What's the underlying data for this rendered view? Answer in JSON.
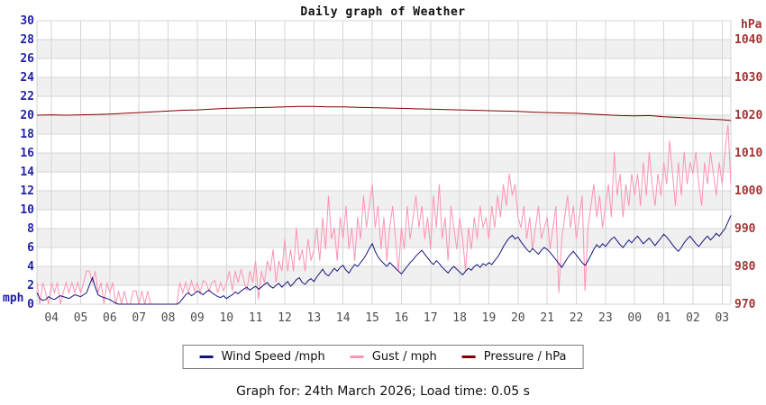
{
  "footer": {
    "text": "Graph for: 24th March 2026; Load time: 0.05 s"
  },
  "chart_data": {
    "type": "line",
    "title": "Daily graph of Weather",
    "left_axis": {
      "unit": "mph",
      "range": [
        0,
        30
      ],
      "ticks": [
        0,
        2,
        4,
        6,
        8,
        10,
        12,
        14,
        16,
        18,
        20,
        22,
        24,
        26,
        28,
        30
      ],
      "color": "#2222aa"
    },
    "right_axis": {
      "unit": "hPa",
      "range": [
        970,
        1045
      ],
      "ticks": [
        970,
        980,
        990,
        1000,
        1010,
        1020,
        1030,
        1040
      ],
      "color": "#a33333"
    },
    "x_axis": {
      "start_hour": 3.5,
      "end_hour": 27.3,
      "label_color": "#4d4d4d",
      "tick_labels": [
        "04",
        "05",
        "06",
        "07",
        "08",
        "09",
        "10",
        "11",
        "12",
        "13",
        "14",
        "15",
        "16",
        "17",
        "18",
        "19",
        "20",
        "21",
        "22",
        "23",
        "00",
        "01",
        "02",
        "03"
      ]
    },
    "grid": {
      "band_color": "#f0f0f0",
      "line_color": "#d6d6d6"
    },
    "series": [
      {
        "id": "wind-speed",
        "name": "Wind Speed /mph",
        "color": "#15157e",
        "axis": "left",
        "t0": 3.5,
        "dt": 0.1,
        "values": [
          1.2,
          0.6,
          0.4,
          0.5,
          0.8,
          0.6,
          0.5,
          0.7,
          0.9,
          0.8,
          0.7,
          0.6,
          0.8,
          1.0,
          0.9,
          0.8,
          1.0,
          1.2,
          2.0,
          2.8,
          1.8,
          1.0,
          0.8,
          0.7,
          0.6,
          0.5,
          0.3,
          0.1,
          0,
          0,
          0,
          0,
          0,
          0,
          0,
          0,
          0,
          0,
          0,
          0,
          0,
          0,
          0,
          0,
          0,
          0,
          0,
          0,
          0,
          0.2,
          0.6,
          1.0,
          1.2,
          0.9,
          1.1,
          1.4,
          1.2,
          1.0,
          1.3,
          1.5,
          1.2,
          1.0,
          0.8,
          0.7,
          0.9,
          0.6,
          0.8,
          1.0,
          1.3,
          1.1,
          1.4,
          1.6,
          1.8,
          1.5,
          1.7,
          1.9,
          1.6,
          1.8,
          2.1,
          2.3,
          1.9,
          1.7,
          2.0,
          2.2,
          1.8,
          2.1,
          2.4,
          1.9,
          2.2,
          2.6,
          2.8,
          2.3,
          2.1,
          2.5,
          2.7,
          2.4,
          2.9,
          3.3,
          3.7,
          3.2,
          3.0,
          3.4,
          3.8,
          3.5,
          3.9,
          4.1,
          3.6,
          3.3,
          3.8,
          4.2,
          4.0,
          4.4,
          4.8,
          5.3,
          5.9,
          6.4,
          5.6,
          5.0,
          4.6,
          4.3,
          4.0,
          4.4,
          4.1,
          3.8,
          3.5,
          3.2,
          3.6,
          4.0,
          4.4,
          4.7,
          5.1,
          5.4,
          5.7,
          5.3,
          4.9,
          4.5,
          4.2,
          4.6,
          4.3,
          3.9,
          3.6,
          3.3,
          3.7,
          4.0,
          3.7,
          3.4,
          3.1,
          3.5,
          3.8,
          3.6,
          4.0,
          4.2,
          3.9,
          4.3,
          4.1,
          4.4,
          4.2,
          4.6,
          5.0,
          5.5,
          6.1,
          6.6,
          7.0,
          7.3,
          6.9,
          7.1,
          6.6,
          6.2,
          5.8,
          5.5,
          5.9,
          5.6,
          5.3,
          5.7,
          6.0,
          5.8,
          5.5,
          5.1,
          4.7,
          4.3,
          3.9,
          4.4,
          4.9,
          5.3,
          5.6,
          5.2,
          4.8,
          4.4,
          4.1,
          4.6,
          5.2,
          5.8,
          6.3,
          6.0,
          6.4,
          6.1,
          6.5,
          6.9,
          7.1,
          6.7,
          6.3,
          6.0,
          6.4,
          6.8,
          6.5,
          6.9,
          7.2,
          6.8,
          6.4,
          6.7,
          7.0,
          6.6,
          6.2,
          6.6,
          7.0,
          7.4,
          7.1,
          6.7,
          6.3,
          5.9,
          5.6,
          6.0,
          6.5,
          6.9,
          7.2,
          6.8,
          6.4,
          6.1,
          6.5,
          6.9,
          7.2,
          6.8,
          7.1,
          7.5,
          7.2,
          7.6,
          8.0,
          8.7,
          9.4
        ]
      },
      {
        "id": "gust",
        "name": "Gust / mph",
        "color": "#ff93b2",
        "axis": "left",
        "t0": 3.5,
        "dt": 0.1,
        "values": [
          2.3,
          0,
          2.3,
          1.2,
          0,
          2.3,
          1.2,
          2.3,
          0,
          1.2,
          2.3,
          1.2,
          2.3,
          1.2,
          2.3,
          1.2,
          2.3,
          3.5,
          3.5,
          2.3,
          3.5,
          1.2,
          2.3,
          0,
          2.3,
          1.2,
          2.3,
          0,
          1.4,
          0,
          1.4,
          0,
          0,
          1.4,
          1.4,
          0,
          1.4,
          0,
          1.4,
          0,
          0,
          0,
          0,
          0,
          0,
          0,
          0,
          0,
          0,
          2.3,
          1.2,
          2.3,
          1.2,
          2.5,
          1.4,
          2.3,
          1.2,
          2.5,
          2.3,
          1.4,
          2.3,
          2.5,
          1.2,
          2.3,
          1.4,
          2.3,
          3.5,
          1.4,
          3.5,
          2.3,
          3.7,
          2.5,
          1.4,
          3.5,
          2.3,
          4.6,
          0.5,
          3.5,
          2.3,
          4.6,
          3.5,
          5.8,
          2.3,
          4.6,
          3.5,
          6.9,
          3.5,
          5.8,
          3.5,
          8.1,
          4.6,
          5.8,
          3.5,
          6.9,
          4.6,
          5.8,
          8.1,
          4.6,
          9.2,
          5.8,
          11.5,
          6.9,
          8.1,
          4.6,
          9.2,
          6.9,
          10.4,
          5.8,
          8.1,
          4.6,
          9.2,
          6.9,
          11.5,
          8.1,
          10.4,
          12.7,
          8.1,
          10.4,
          5.8,
          9.2,
          4.6,
          8.1,
          10.4,
          6.9,
          3.5,
          8.1,
          5.8,
          10.4,
          6.9,
          9.2,
          11.5,
          8.1,
          10.4,
          6.9,
          9.2,
          5.8,
          11.5,
          8.1,
          12.7,
          6.9,
          9.2,
          4.6,
          10.4,
          8.1,
          5.8,
          9.2,
          6.9,
          3.5,
          8.1,
          5.8,
          9.2,
          6.9,
          10.4,
          8.1,
          9.2,
          6.9,
          10.4,
          8.1,
          11.5,
          9.2,
          12.7,
          10.4,
          13.8,
          11.5,
          12.7,
          9.2,
          8.1,
          10.4,
          6.9,
          9.2,
          5.8,
          8.1,
          10.4,
          6.9,
          8.1,
          9.2,
          5.8,
          8.1,
          10.4,
          1.2,
          6.9,
          9.2,
          11.5,
          8.1,
          10.4,
          6.9,
          9.2,
          11.5,
          1.4,
          8.1,
          10.4,
          12.7,
          9.2,
          11.5,
          8.1,
          10.4,
          12.7,
          9.2,
          16.1,
          11.5,
          13.8,
          9.2,
          12.7,
          10.4,
          13.8,
          11.5,
          13.8,
          10.4,
          15.0,
          11.5,
          16.1,
          12.7,
          10.4,
          13.8,
          11.5,
          15.0,
          12.7,
          17.3,
          13.8,
          10.4,
          15.0,
          11.5,
          16.1,
          12.7,
          15.0,
          13.8,
          16.1,
          12.7,
          10.4,
          15.0,
          12.7,
          16.1,
          13.8,
          11.5,
          15.0,
          12.7,
          16.1,
          19.0,
          12.7
        ]
      },
      {
        "id": "pressure",
        "name": "Pressure / hPa",
        "color": "#7f0000",
        "axis": "right",
        "t0": 3.5,
        "dt": 0.5,
        "values": [
          1020.0,
          1020.1,
          1020.0,
          1020.1,
          1020.2,
          1020.3,
          1020.5,
          1020.7,
          1020.9,
          1021.1,
          1021.3,
          1021.4,
          1021.6,
          1021.8,
          1021.9,
          1022.0,
          1022.1,
          1022.2,
          1022.3,
          1022.3,
          1022.2,
          1022.2,
          1022.1,
          1022.0,
          1021.9,
          1021.8,
          1021.7,
          1021.6,
          1021.5,
          1021.4,
          1021.3,
          1021.2,
          1021.1,
          1021.0,
          1020.8,
          1020.7,
          1020.6,
          1020.5,
          1020.3,
          1020.1,
          1019.9,
          1019.8,
          1019.9,
          1019.6,
          1019.4,
          1019.2,
          1019.0,
          1018.8,
          1018.6
        ]
      }
    ]
  }
}
